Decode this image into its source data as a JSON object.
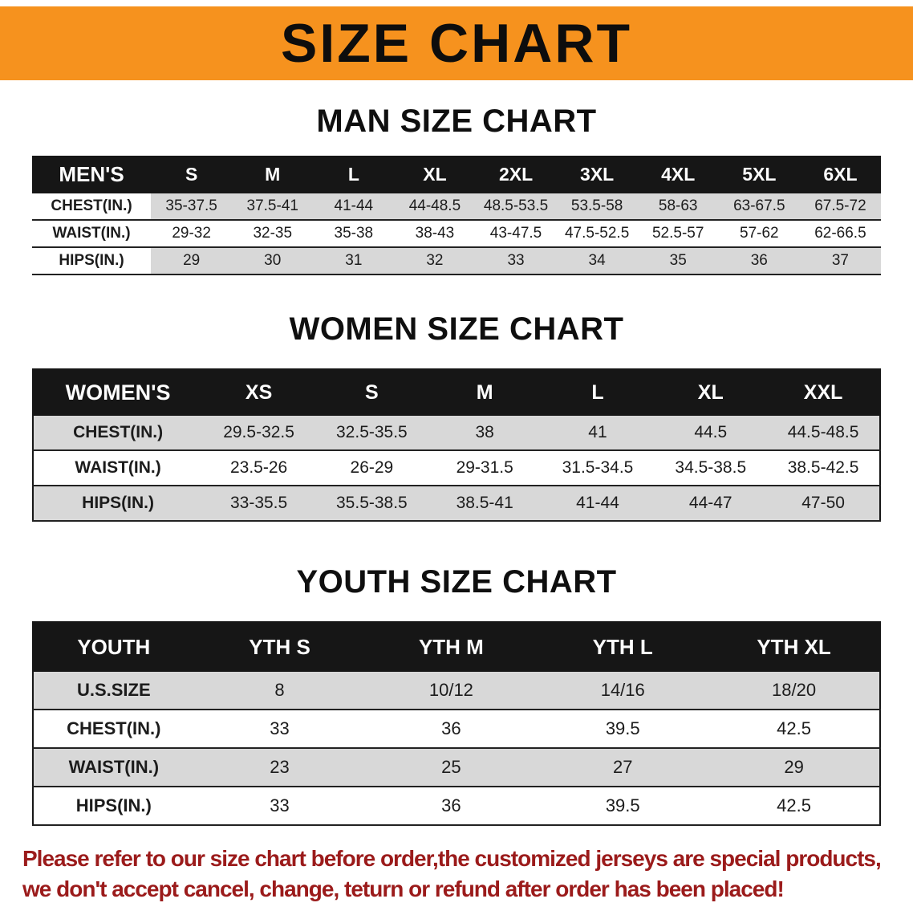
{
  "banner": {
    "title": "SIZE CHART"
  },
  "colors": {
    "banner_bg": "#F6921E",
    "table_header_bg": "#161616",
    "row_stripe": "#D8D8D8",
    "notice_text": "#9B1B1B"
  },
  "sections": [
    {
      "id": "men",
      "heading": "MAN SIZE CHART",
      "table": {
        "header": [
          "MEN'S",
          "S",
          "M",
          "L",
          "XL",
          "2XL",
          "3XL",
          "4XL",
          "5XL",
          "6XL"
        ],
        "rows": [
          [
            "CHEST(IN.)",
            "35-37.5",
            "37.5-41",
            "41-44",
            "44-48.5",
            "48.5-53.5",
            "53.5-58",
            "58-63",
            "63-67.5",
            "67.5-72"
          ],
          [
            "WAIST(IN.)",
            "29-32",
            "32-35",
            "35-38",
            "38-43",
            "43-47.5",
            "47.5-52.5",
            "52.5-57",
            "57-62",
            "62-66.5"
          ],
          [
            "HIPS(IN.)",
            "29",
            "30",
            "31",
            "32",
            "33",
            "34",
            "35",
            "36",
            "37"
          ]
        ]
      }
    },
    {
      "id": "women",
      "heading": "WOMEN SIZE CHART",
      "table": {
        "header": [
          "WOMEN'S",
          "XS",
          "S",
          "M",
          "L",
          "XL",
          "XXL"
        ],
        "rows": [
          [
            "CHEST(IN.)",
            "29.5-32.5",
            "32.5-35.5",
            "38",
            "41",
            "44.5",
            "44.5-48.5"
          ],
          [
            "WAIST(IN.)",
            "23.5-26",
            "26-29",
            "29-31.5",
            "31.5-34.5",
            "34.5-38.5",
            "38.5-42.5"
          ],
          [
            "HIPS(IN.)",
            "33-35.5",
            "35.5-38.5",
            "38.5-41",
            "41-44",
            "44-47",
            "47-50"
          ]
        ]
      }
    },
    {
      "id": "youth",
      "heading": "YOUTH SIZE CHART",
      "table": {
        "header": [
          "YOUTH",
          "YTH S",
          "YTH M",
          "YTH L",
          "YTH XL"
        ],
        "rows": [
          [
            "U.S.SIZE",
            "8",
            "10/12",
            "14/16",
            "18/20"
          ],
          [
            "CHEST(IN.)",
            "33",
            "36",
            "39.5",
            "42.5"
          ],
          [
            "WAIST(IN.)",
            "23",
            "25",
            "27",
            "29"
          ],
          [
            "HIPS(IN.)",
            "33",
            "36",
            "39.5",
            "42.5"
          ]
        ]
      }
    }
  ],
  "footer": {
    "line1": "Please refer to our size chart before order,the customized jerseys are special products,",
    "line2": "we don't accept cancel, change, teturn or refund after order has been placed!"
  }
}
